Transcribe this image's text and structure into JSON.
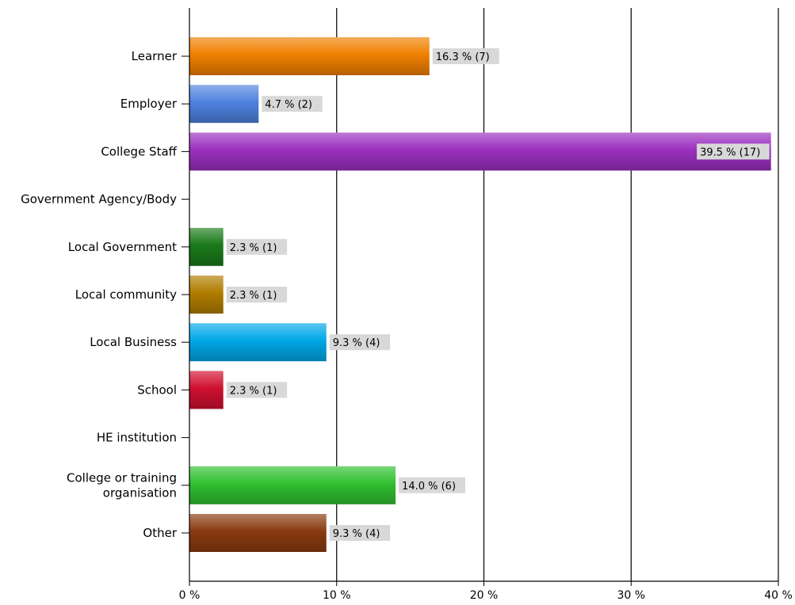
{
  "chart_data": {
    "type": "bar",
    "orientation": "horizontal",
    "categories": [
      "Learner",
      "Employer",
      "College Staff",
      "Government Agency/Body",
      "Local Government",
      "Local community",
      "Local Business",
      "School",
      "HE institution",
      "College or training organisation",
      "Other"
    ],
    "category_lines": [
      [
        "Learner"
      ],
      [
        "Employer"
      ],
      [
        "College Staff"
      ],
      [
        "Government Agency/Body"
      ],
      [
        "Local Government"
      ],
      [
        "Local community"
      ],
      [
        "Local Business"
      ],
      [
        "School"
      ],
      [
        "HE institution"
      ],
      [
        "College or training",
        "organisation"
      ],
      [
        "Other"
      ]
    ],
    "values": [
      16.3,
      4.7,
      39.5,
      0,
      2.3,
      2.3,
      9.3,
      2.3,
      0,
      14.0,
      9.3
    ],
    "counts": [
      7,
      2,
      17,
      0,
      1,
      1,
      4,
      1,
      0,
      6,
      4
    ],
    "data_labels": [
      "16.3 % (7)",
      "4.7 % (2)",
      "39.5 % (17)",
      "",
      "2.3 % (1)",
      "2.3 % (1)",
      "9.3 % (4)",
      "2.3 % (1)",
      "",
      "14.0 % (6)",
      "9.3 % (4)"
    ],
    "colors": [
      "#f08000",
      "#4f82e0",
      "#9b30c0",
      "#888888",
      "#1a7a1a",
      "#b07d00",
      "#00a8e8",
      "#d01030",
      "#888888",
      "#30c030",
      "#8a3a10"
    ],
    "xlim": [
      0,
      40
    ],
    "xticks": [
      0,
      10,
      20,
      30,
      40
    ],
    "xtick_labels": [
      "0 %",
      "10 %",
      "20 %",
      "30 %",
      "40 %"
    ],
    "grid": true,
    "title": "",
    "xlabel": "",
    "ylabel": ""
  }
}
